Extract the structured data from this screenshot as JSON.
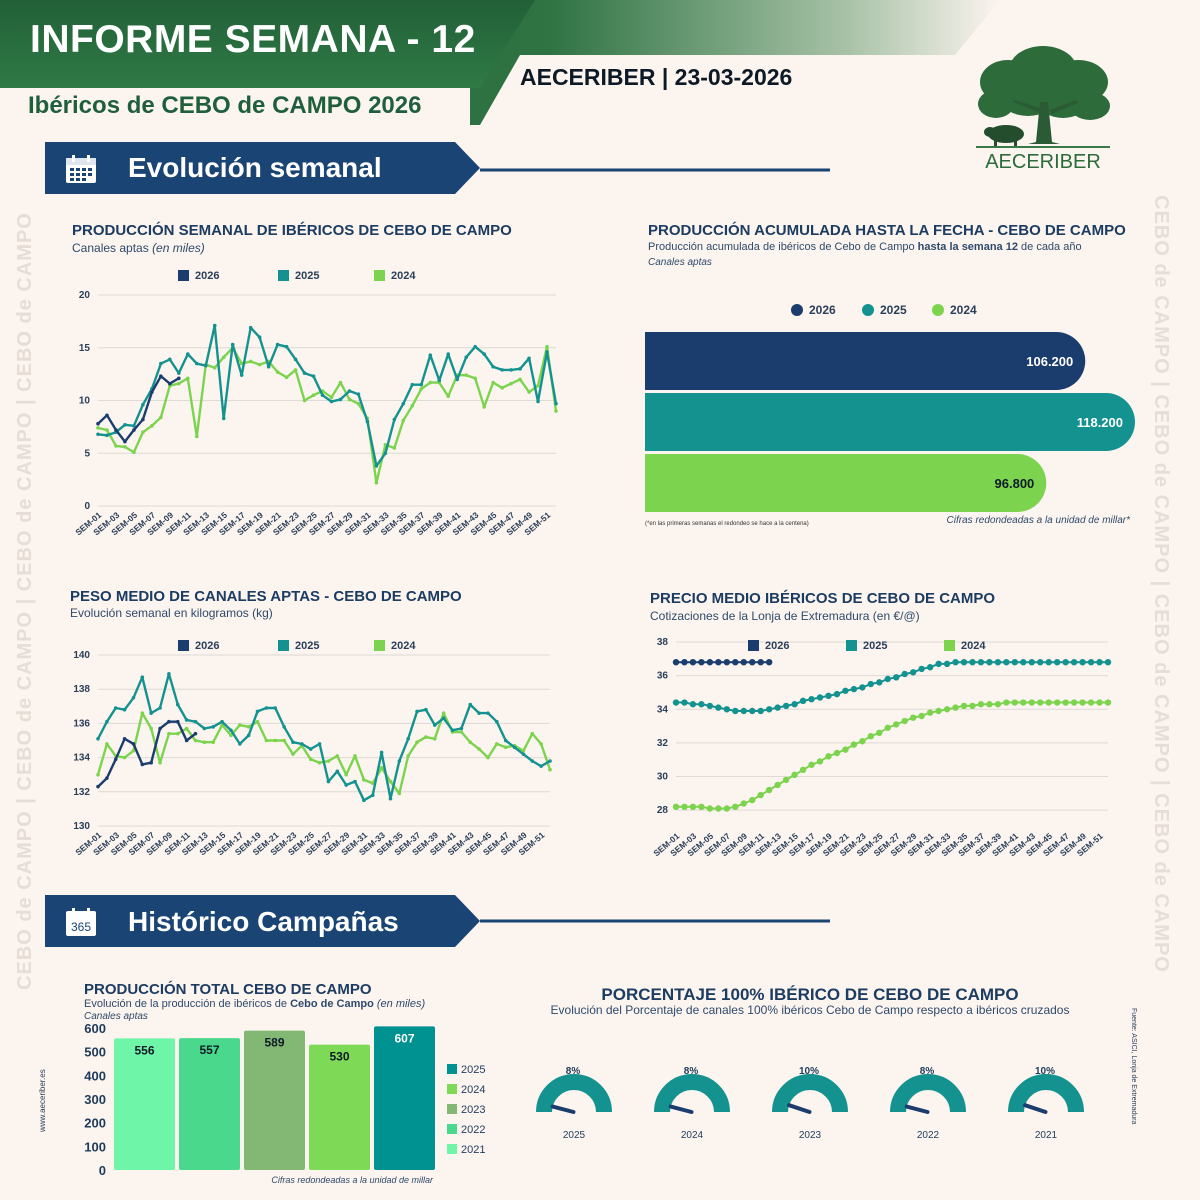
{
  "header": {
    "title": "INFORME SEMANA - 12",
    "source_date": "AECERIBER | 23-03-2026",
    "subtitle": "Ibéricos de CEBO de CAMPO 2026",
    "logo_text": "AECERIBER"
  },
  "colors": {
    "c2026": "#1b3d6e",
    "c2025": "#14928f",
    "c2024": "#7cd44e",
    "banner": "#1a4474",
    "header_green": "#27653a"
  },
  "sections": {
    "weekly": "Evolución semanal",
    "history": "Histórico Campañas"
  },
  "side_watermark": "CEBO de CAMPO | CEBO de CAMPO | CEBO de CAMPO | CEBO de CAMPO",
  "website": "www.aeceriber.es",
  "source_note": "Fuente: ASICI, Lonja de Extremadura",
  "icons": {
    "calendar": "calendar-icon",
    "calendar365": "calendar-365-icon"
  },
  "chart_data": [
    {
      "id": "weekly-production",
      "type": "line",
      "title": "PRODUCCIÓN SEMANAL DE IBÉRICOS DE CEBO DE CAMPO",
      "subtitle": "Canales aptas",
      "subtitle_em": "(en miles)",
      "ylim": [
        0,
        20
      ],
      "yticks": [
        "0",
        "5",
        "10",
        "15",
        "20"
      ],
      "xticks": [
        "SEM-01",
        "SEM-03",
        "SEM-05",
        "SEM-07",
        "SEM-09",
        "SEM-11",
        "SEM-13",
        "SEM-15",
        "SEM-17",
        "SEM-19",
        "SEM-21",
        "SEM-23",
        "SEM-25",
        "SEM-27",
        "SEM-29",
        "SEM-31",
        "SEM-33",
        "SEM-35",
        "SEM-37",
        "SEM-39",
        "SEM-41",
        "SEM-43",
        "SEM-45",
        "SEM-47",
        "SEM-49",
        "SEM-51"
      ],
      "series": [
        {
          "name": "2026",
          "values": [
            7.8,
            8.6,
            7.2,
            6.1,
            7.2,
            8.2,
            10.8,
            12.3,
            11.6,
            12.1
          ]
        },
        {
          "name": "2025",
          "values": [
            6.8,
            6.7,
            7.0,
            7.7,
            7.6,
            9.6,
            11.1,
            13.5,
            13.9,
            12.6,
            14.4,
            13.5,
            13.3,
            17.1,
            8.3,
            15.3,
            12.4,
            16.9,
            16.0,
            13.2,
            15.3,
            15.1,
            13.9,
            12.6,
            12.3,
            10.5,
            9.9,
            10.1,
            10.9,
            10.6,
            8.0,
            3.8,
            5.0,
            8.2,
            9.7,
            11.5,
            11.5,
            14.3,
            11.9,
            14.4,
            12.0,
            14.1,
            15.1,
            14.4,
            13.2,
            12.9,
            12.9,
            13.0,
            14.0,
            9.9,
            14.6,
            9.7
          ]
        },
        {
          "name": "2024",
          "values": [
            7.4,
            7.2,
            5.7,
            5.6,
            5.1,
            7.0,
            7.6,
            8.4,
            11.4,
            11.6,
            12.1,
            6.6,
            13.4,
            13.1,
            14.1,
            15.0,
            13.5,
            13.7,
            13.4,
            13.7,
            12.7,
            12.2,
            12.9,
            10.0,
            10.5,
            10.9,
            10.3,
            11.7,
            10.1,
            9.7,
            8.3,
            2.2,
            5.8,
            5.5,
            8.1,
            9.5,
            11.1,
            11.7,
            11.7,
            10.4,
            12.4,
            12.4,
            12.1,
            9.4,
            11.7,
            11.2,
            11.6,
            12.0,
            10.8,
            11.4,
            15.1,
            9.0
          ]
        }
      ]
    },
    {
      "id": "cumulative-production",
      "type": "bar",
      "title": "PRODUCCIÓN ACUMULADA HASTA LA FECHA - CEBO DE CAMPO",
      "subtitle_pre": "Producción acumulada de ibéricos de Cebo de Campo ",
      "subtitle_bold": "hasta la semana 12",
      "subtitle_post": " de cada año",
      "subtitle2": "Canales aptas",
      "categories": [
        "2026",
        "2025",
        "2024"
      ],
      "values": [
        106200,
        118200,
        96800
      ],
      "labels": [
        "106.200",
        "118.200",
        "96.800"
      ],
      "footnote_left": "(*en las primeras semanas el redondeo se hace a la centena)",
      "footnote_right": "Cifras redondeadas a la unidad de millar*"
    },
    {
      "id": "carcass-weight",
      "type": "line",
      "title": "PESO MEDIO DE CANALES APTAS - CEBO DE CAMPO",
      "subtitle": "Evolución semanal en kilogramos (kg)",
      "ylim": [
        130,
        140
      ],
      "yticks": [
        "130",
        "132",
        "134",
        "136",
        "138",
        "140"
      ],
      "xticks": [
        "SEM-01",
        "SEM-03",
        "SEM-05",
        "SEM-07",
        "SEM-09",
        "SEM-11",
        "SEM-13",
        "SEM-15",
        "SEM-17",
        "SEM-19",
        "SEM-21",
        "SEM-23",
        "SEM-25",
        "SEM-27",
        "SEM-29",
        "SEM-31",
        "SEM-33",
        "SEM-35",
        "SEM-37",
        "SEM-39",
        "SEM-41",
        "SEM-43",
        "SEM-45",
        "SEM-47",
        "SEM-49",
        "SEM-51"
      ],
      "series": [
        {
          "name": "2026",
          "values": [
            132.3,
            132.8,
            133.9,
            135.1,
            134.8,
            133.6,
            133.7,
            135.7,
            136.1,
            136.1,
            135.0,
            135.4
          ]
        },
        {
          "name": "2025",
          "values": [
            135.1,
            136.1,
            136.9,
            136.8,
            137.5,
            138.7,
            136.6,
            136.9,
            138.9,
            137.1,
            136.2,
            136.1,
            135.7,
            135.8,
            136.1,
            135.6,
            134.8,
            135.3,
            136.7,
            136.9,
            136.9,
            135.8,
            134.9,
            134.8,
            134.5,
            134.8,
            132.6,
            133.2,
            132.4,
            132.6,
            131.5,
            131.8,
            134.3,
            131.6,
            133.8,
            135.1,
            136.7,
            136.8,
            135.9,
            136.3,
            135.6,
            135.7,
            137.1,
            136.6,
            136.6,
            136.1,
            135.0,
            134.6,
            134.2,
            133.8,
            133.5,
            133.8
          ]
        },
        {
          "name": "2024",
          "values": [
            133.0,
            134.8,
            134.1,
            134.0,
            134.4,
            136.6,
            135.7,
            133.7,
            135.4,
            135.4,
            135.7,
            135.0,
            134.9,
            134.9,
            135.9,
            135.3,
            135.9,
            135.8,
            136.1,
            135.0,
            135.0,
            135.0,
            134.2,
            134.7,
            133.9,
            133.7,
            133.8,
            134.1,
            133.0,
            134.1,
            132.7,
            132.5,
            133.4,
            132.6,
            131.9,
            134.1,
            134.9,
            135.2,
            135.1,
            136.6,
            135.5,
            135.5,
            134.9,
            134.5,
            134.0,
            134.8,
            134.6,
            134.7,
            134.4,
            135.4,
            134.8,
            133.3
          ]
        }
      ]
    },
    {
      "id": "average-price",
      "type": "line",
      "title": "PRECIO MEDIO IBÉRICOS DE CEBO DE CAMPO",
      "subtitle": "Cotizaciones de la Lonja de Extremadura (en €/@)",
      "ylim": [
        27,
        38
      ],
      "yticks": [
        "28",
        "30",
        "32",
        "34",
        "36",
        "38"
      ],
      "xticks": [
        "SEM-01",
        "SEM-03",
        "SEM-05",
        "SEM-07",
        "SEM-09",
        "SEM-11",
        "SEM-13",
        "SEM-15",
        "SEM-17",
        "SEM-19",
        "SEM-21",
        "SEM-23",
        "SEM-25",
        "SEM-27",
        "SEM-29",
        "SEM-31",
        "SEM-33",
        "SEM-35",
        "SEM-37",
        "SEM-39",
        "SEM-41",
        "SEM-43",
        "SEM-45",
        "SEM-47",
        "SEM-49",
        "SEM-51"
      ],
      "series": [
        {
          "name": "2026",
          "values": [
            36.8,
            36.8,
            36.8,
            36.8,
            36.8,
            36.8,
            36.8,
            36.8,
            36.8,
            36.8,
            36.8,
            36.8
          ]
        },
        {
          "name": "2025",
          "values": [
            34.4,
            34.4,
            34.3,
            34.3,
            34.2,
            34.1,
            34.0,
            33.9,
            33.9,
            33.9,
            33.9,
            34.0,
            34.1,
            34.2,
            34.3,
            34.5,
            34.6,
            34.7,
            34.8,
            34.9,
            35.1,
            35.2,
            35.3,
            35.5,
            35.6,
            35.8,
            35.9,
            36.1,
            36.2,
            36.4,
            36.5,
            36.7,
            36.7,
            36.8,
            36.8,
            36.8,
            36.8,
            36.8,
            36.8,
            36.8,
            36.8,
            36.8,
            36.8,
            36.8,
            36.8,
            36.8,
            36.8,
            36.8,
            36.8,
            36.8,
            36.8,
            36.8
          ]
        },
        {
          "name": "2024",
          "values": [
            28.2,
            28.2,
            28.2,
            28.2,
            28.1,
            28.1,
            28.1,
            28.2,
            28.4,
            28.6,
            28.9,
            29.2,
            29.5,
            29.8,
            30.1,
            30.4,
            30.7,
            30.9,
            31.2,
            31.4,
            31.6,
            31.9,
            32.1,
            32.4,
            32.6,
            32.9,
            33.1,
            33.3,
            33.5,
            33.6,
            33.8,
            33.9,
            34.0,
            34.1,
            34.2,
            34.2,
            34.3,
            34.3,
            34.3,
            34.4,
            34.4,
            34.4,
            34.4,
            34.4,
            34.4,
            34.4,
            34.4,
            34.4,
            34.4,
            34.4,
            34.4,
            34.4
          ]
        }
      ]
    },
    {
      "id": "total-production",
      "type": "bar",
      "title": "PRODUCCIÓN TOTAL CEBO DE CAMPO",
      "subtitle_pre": "Evolución de la producción de ibéricos de ",
      "subtitle_bold": "Cebo de Campo",
      "subtitle_em": " (en miles)",
      "subtitle2": "Canales aptas",
      "categories": [
        "2021",
        "2022",
        "2023",
        "2024",
        "2025"
      ],
      "values": [
        556,
        557,
        589,
        530,
        607
      ],
      "ylim": [
        0,
        600
      ],
      "yticks": [
        "0",
        "100",
        "200",
        "300",
        "400",
        "500",
        "600"
      ],
      "colors": [
        "#6ef5a8",
        "#4ad88c",
        "#82b874",
        "#7ed957",
        "#009191"
      ],
      "legend": [
        "2025",
        "2024",
        "2023",
        "2022",
        "2021"
      ],
      "legend_colors": [
        "#009191",
        "#7ed957",
        "#82b874",
        "#4ad88c",
        "#6ef5a8"
      ],
      "footnote": "Cifras redondeadas a la unidad de millar"
    },
    {
      "id": "iberico-percentage",
      "type": "gauge",
      "title": "PORCENTAJE 100% IBÉRICO DE CEBO DE CAMPO",
      "subtitle": "Evolución del Porcentaje de canales 100% ibéricos Cebo de Campo respecto a ibéricos cruzados",
      "categories": [
        "2025",
        "2024",
        "2023",
        "2022",
        "2021"
      ],
      "values": [
        8,
        8,
        10,
        8,
        10
      ],
      "labels": [
        "8%",
        "8%",
        "10%",
        "8%",
        "10%"
      ]
    }
  ]
}
